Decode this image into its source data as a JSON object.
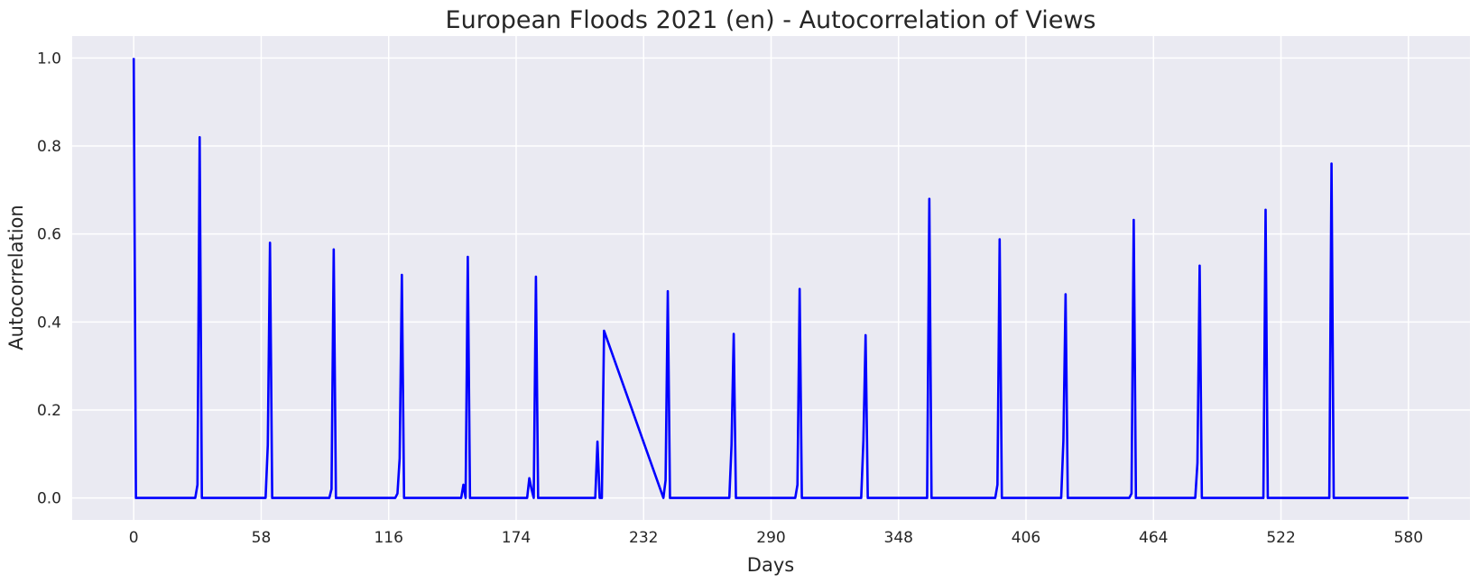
{
  "chart_data": {
    "type": "line",
    "title": "European Floods 2021 (en) - Autocorrelation of Views",
    "xlabel": "Days",
    "ylabel": "Autocorrelation",
    "xlim": [
      -28,
      608
    ],
    "ylim": [
      -0.05,
      1.05
    ],
    "xticks": [
      0,
      58,
      116,
      174,
      232,
      290,
      348,
      406,
      464,
      522,
      580
    ],
    "yticks": [
      0.0,
      0.2,
      0.4,
      0.6,
      0.8,
      1.0
    ],
    "ytick_labels": [
      "0.0",
      "0.2",
      "0.4",
      "0.6",
      "0.8",
      "1.0"
    ],
    "grid": true,
    "legend": "none",
    "colors": {
      "background": "#eaeaf2",
      "grid": "#ffffff",
      "line": "#0000ff"
    },
    "series": [
      {
        "x": [
          0,
          1,
          2,
          28,
          29,
          30,
          31,
          32,
          60,
          61,
          62,
          63,
          89,
          90,
          91,
          92,
          119,
          120,
          121,
          122,
          123,
          149,
          150,
          151,
          152,
          153,
          179,
          180,
          181,
          182,
          183,
          184,
          210,
          211,
          212,
          213,
          214,
          241,
          242,
          243,
          244,
          271,
          272,
          273,
          274,
          301,
          302,
          303,
          304,
          331,
          332,
          333,
          334,
          361,
          362,
          363,
          392,
          393,
          394,
          395,
          422,
          423,
          424,
          425,
          453,
          454,
          455,
          456,
          483,
          484,
          485,
          486,
          514,
          515,
          516,
          544,
          545,
          546,
          580
        ],
        "y": [
          1.0,
          0.0,
          0.0,
          0.0,
          0.03,
          0.82,
          0.0,
          0.0,
          0.0,
          0.12,
          0.58,
          0.0,
          0.0,
          0.02,
          0.565,
          0.0,
          0.0,
          0.01,
          0.09,
          0.507,
          0.0,
          0.0,
          0.03,
          0.0,
          0.548,
          0.0,
          0.0,
          0.045,
          0.02,
          0.0,
          0.503,
          0.0,
          0.0,
          0.128,
          0.0,
          0.0,
          0.38,
          0.0,
          0.04,
          0.47,
          0.0,
          0.0,
          0.12,
          0.373,
          0.0,
          0.0,
          0.03,
          0.475,
          0.0,
          0.0,
          0.13,
          0.37,
          0.0,
          0.0,
          0.68,
          0.0,
          0.0,
          0.03,
          0.588,
          0.0,
          0.0,
          0.13,
          0.463,
          0.0,
          0.0,
          0.01,
          0.632,
          0.0,
          0.0,
          0.08,
          0.528,
          0.0,
          0.0,
          0.655,
          0.0,
          0.0,
          0.76,
          0.0,
          0.0
        ]
      }
    ]
  }
}
